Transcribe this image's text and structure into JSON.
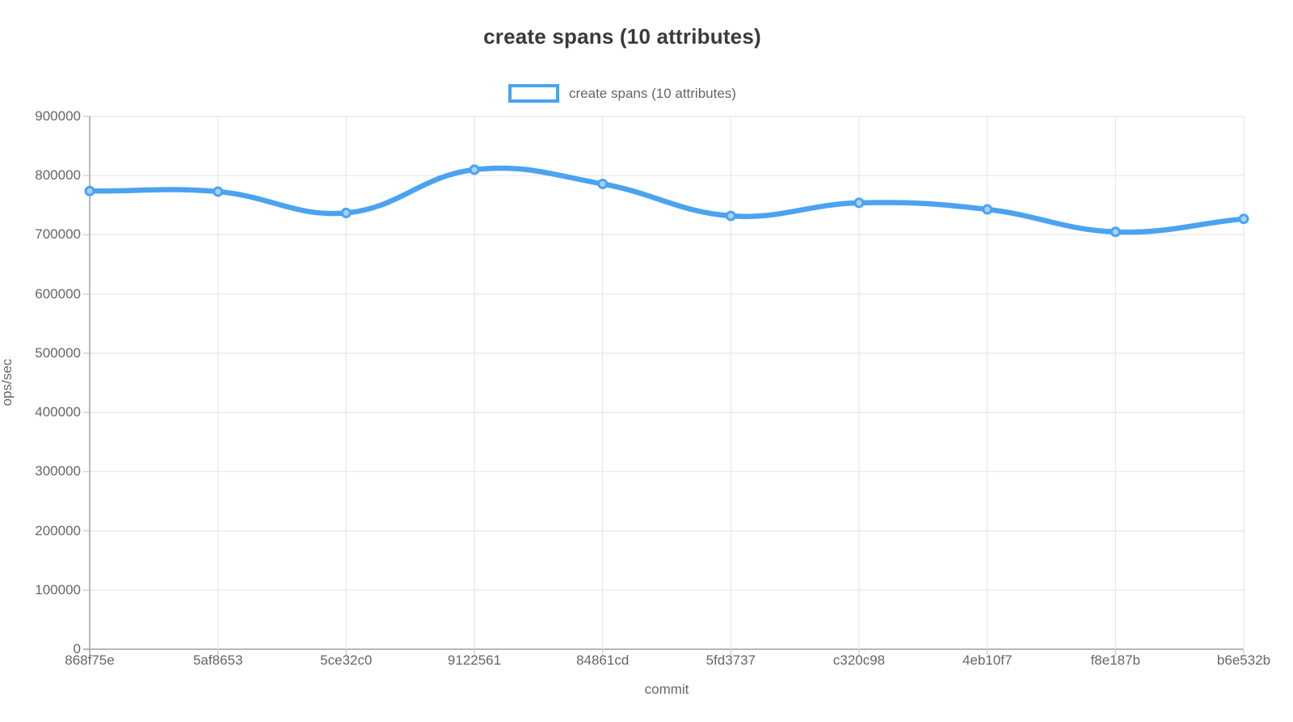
{
  "colors": {
    "line": "#4BA3F0",
    "point_fill": "#A8D4F7",
    "grid": "#E7E7E7",
    "axis": "#A0A0A0",
    "tick_mark": "#C9C9C9",
    "tick_text": "#666666",
    "title_text": "#3A3A3A"
  },
  "chart_data": {
    "type": "line",
    "title": "create spans (10 attributes)",
    "xlabel": "commit",
    "ylabel": "ops/sec",
    "categories": [
      "868f75e",
      "5af8653",
      "5ce32c0",
      "9122561",
      "84861cd",
      "5fd3737",
      "c320c98",
      "4eb10f7",
      "f8e187b",
      "b6e532b"
    ],
    "series": [
      {
        "name": "create spans (10 attributes)",
        "values": [
          774000,
          773000,
          737000,
          810000,
          786000,
          732000,
          754000,
          743000,
          705000,
          727000
        ]
      }
    ],
    "ylim": [
      0,
      900000
    ],
    "ytick_step": 100000,
    "grid": true,
    "legend_position": "top",
    "curve": "smooth"
  }
}
